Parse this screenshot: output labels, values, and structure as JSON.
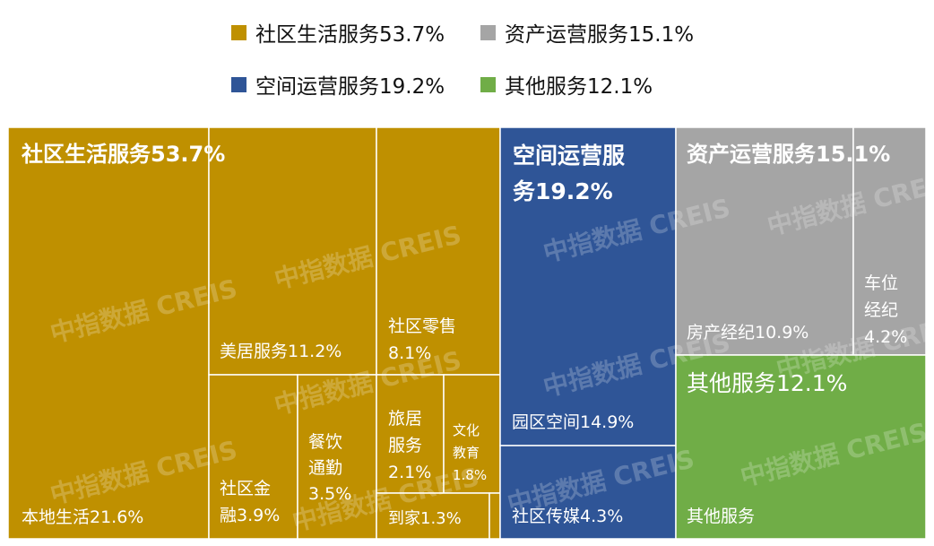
{
  "chart_data": {
    "type": "treemap",
    "title": "",
    "legend": [
      {
        "label": "社区生活服务53.7%",
        "color": "#BF9000"
      },
      {
        "label": "资产运营服务15.1%",
        "color": "#A5A5A5"
      },
      {
        "label": "空间运营服务19.2%",
        "color": "#2F5597"
      },
      {
        "label": "其他服务12.1%",
        "color": "#70AD47"
      }
    ],
    "groups": [
      {
        "name": "社区生活服务",
        "label": "社区生活服务53.7%",
        "value": 53.7,
        "color": "#BF9000",
        "children": [
          {
            "label_lines": [
              "本地生活21.6%"
            ],
            "value": 21.6
          },
          {
            "label_lines": [
              "美居服务11.2%"
            ],
            "value": 11.2
          },
          {
            "label_lines": [
              "社区零售",
              "8.1%"
            ],
            "value": 8.1
          },
          {
            "label_lines": [
              "社区金",
              "融3.9%"
            ],
            "value": 3.9
          },
          {
            "label_lines": [
              "餐饮",
              "通勤",
              "3.5%"
            ],
            "value": 3.5
          },
          {
            "label_lines": [
              "旅居",
              "服务",
              "2.1%"
            ],
            "value": 2.1
          },
          {
            "label_lines": [
              "文化",
              "教育",
              "1.8%"
            ],
            "value": 1.8
          },
          {
            "label_lines": [
              "到家1.3%"
            ],
            "value": 1.3
          },
          {
            "label_lines": [],
            "value": 0.2
          }
        ]
      },
      {
        "name": "空间运营服务",
        "label_lines": [
          "空间运营服",
          "务19.2%"
        ],
        "value": 19.2,
        "color": "#2F5597",
        "children": [
          {
            "label_lines": [
              "园区空间14.9%"
            ],
            "value": 14.9
          },
          {
            "label_lines": [
              "社区传媒4.3%"
            ],
            "value": 4.3
          }
        ]
      },
      {
        "name": "资产运营服务",
        "label": "资产运营服务15.1%",
        "value": 15.1,
        "color": "#A5A5A5",
        "children": [
          {
            "label_lines": [
              "房产经纪10.9%"
            ],
            "value": 10.9
          },
          {
            "label_lines": [
              "车位",
              "经纪",
              "4.2%"
            ],
            "value": 4.2
          }
        ]
      },
      {
        "name": "其他服务",
        "label": "其他服务12.1%",
        "value": 12.1,
        "color": "#70AD47",
        "children": [
          {
            "label_lines": [
              "其他服务"
            ],
            "value": 12.1
          }
        ]
      }
    ],
    "watermark": "中指数据 CREIS"
  }
}
